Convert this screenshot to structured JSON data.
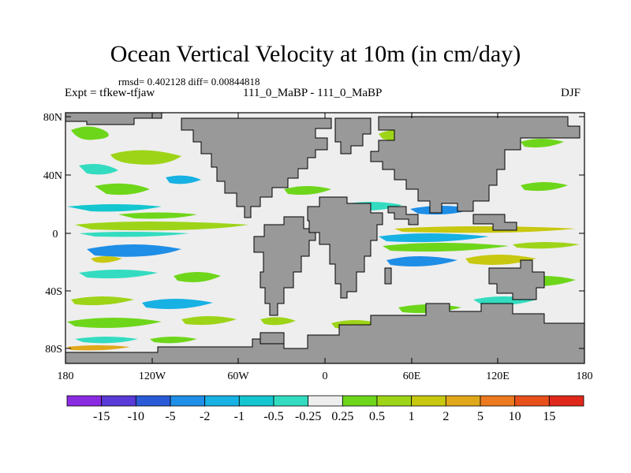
{
  "title": "Ocean Vertical Velocity at 10m (in cm/day)",
  "stats": "rmsd= 0.402128 diff= 0.00844818",
  "experiment": "Expt = tfkew-tfjaw",
  "runs": "111_0_MaBP - 111_0_MaBP",
  "season": "DJF",
  "axes": {
    "lat_ticks": [
      "80N",
      "40N",
      "0",
      "40S",
      "80S"
    ],
    "lon_ticks": [
      "180",
      "120W",
      "60W",
      "0",
      "60E",
      "120E",
      "180"
    ]
  },
  "colorbar": {
    "labels": [
      "-15",
      "-10",
      "-5",
      "-2",
      "-1",
      "-0.5",
      "-0.25",
      "0.25",
      "0.5",
      "1",
      "2",
      "5",
      "10",
      "15"
    ],
    "colors": [
      "#8a2be2",
      "#5a3ad8",
      "#2a5ad8",
      "#1e8ee6",
      "#17b1e4",
      "#14c6cf",
      "#33dcc0",
      "#eeeeee",
      "#6ed61a",
      "#9ed418",
      "#c8c810",
      "#e0a81a",
      "#ec7a1e",
      "#e8501a",
      "#e0281a"
    ]
  },
  "colors": {
    "land": "#999999",
    "neutral_ocean": "#eeeeee"
  }
}
